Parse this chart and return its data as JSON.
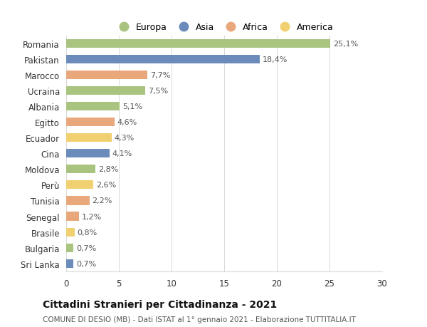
{
  "countries": [
    "Romania",
    "Pakistan",
    "Marocco",
    "Ucraina",
    "Albania",
    "Egitto",
    "Ecuador",
    "Cina",
    "Moldova",
    "Perù",
    "Tunisia",
    "Senegal",
    "Brasile",
    "Bulgaria",
    "Sri Lanka"
  ],
  "values": [
    25.1,
    18.4,
    7.7,
    7.5,
    5.1,
    4.6,
    4.3,
    4.1,
    2.8,
    2.6,
    2.2,
    1.2,
    0.8,
    0.7,
    0.7
  ],
  "labels": [
    "25,1%",
    "18,4%",
    "7,7%",
    "7,5%",
    "5,1%",
    "4,6%",
    "4,3%",
    "4,1%",
    "2,8%",
    "2,6%",
    "2,2%",
    "1,2%",
    "0,8%",
    "0,7%",
    "0,7%"
  ],
  "continents": [
    "Europa",
    "Asia",
    "Africa",
    "Europa",
    "Europa",
    "Africa",
    "America",
    "Asia",
    "Europa",
    "America",
    "Africa",
    "Africa",
    "America",
    "Europa",
    "Asia"
  ],
  "continent_colors": {
    "Europa": "#a8c47e",
    "Asia": "#6b8cba",
    "Africa": "#e8a87c",
    "America": "#f0d070"
  },
  "legend_order": [
    "Europa",
    "Asia",
    "Africa",
    "America"
  ],
  "xlim": [
    0,
    30
  ],
  "xticks": [
    0,
    5,
    10,
    15,
    20,
    25,
    30
  ],
  "title": "Cittadini Stranieri per Cittadinanza - 2021",
  "subtitle": "COMUNE DI DESIO (MB) - Dati ISTAT al 1° gennaio 2021 - Elaborazione TUTTITALIA.IT",
  "background_color": "#ffffff",
  "bar_height": 0.55,
  "label_fontsize": 8,
  "ytick_fontsize": 8.5,
  "xtick_fontsize": 8.5,
  "title_fontsize": 10,
  "subtitle_fontsize": 7.5,
  "grid_color": "#d8d8d8",
  "label_color": "#555555",
  "text_color": "#333333"
}
